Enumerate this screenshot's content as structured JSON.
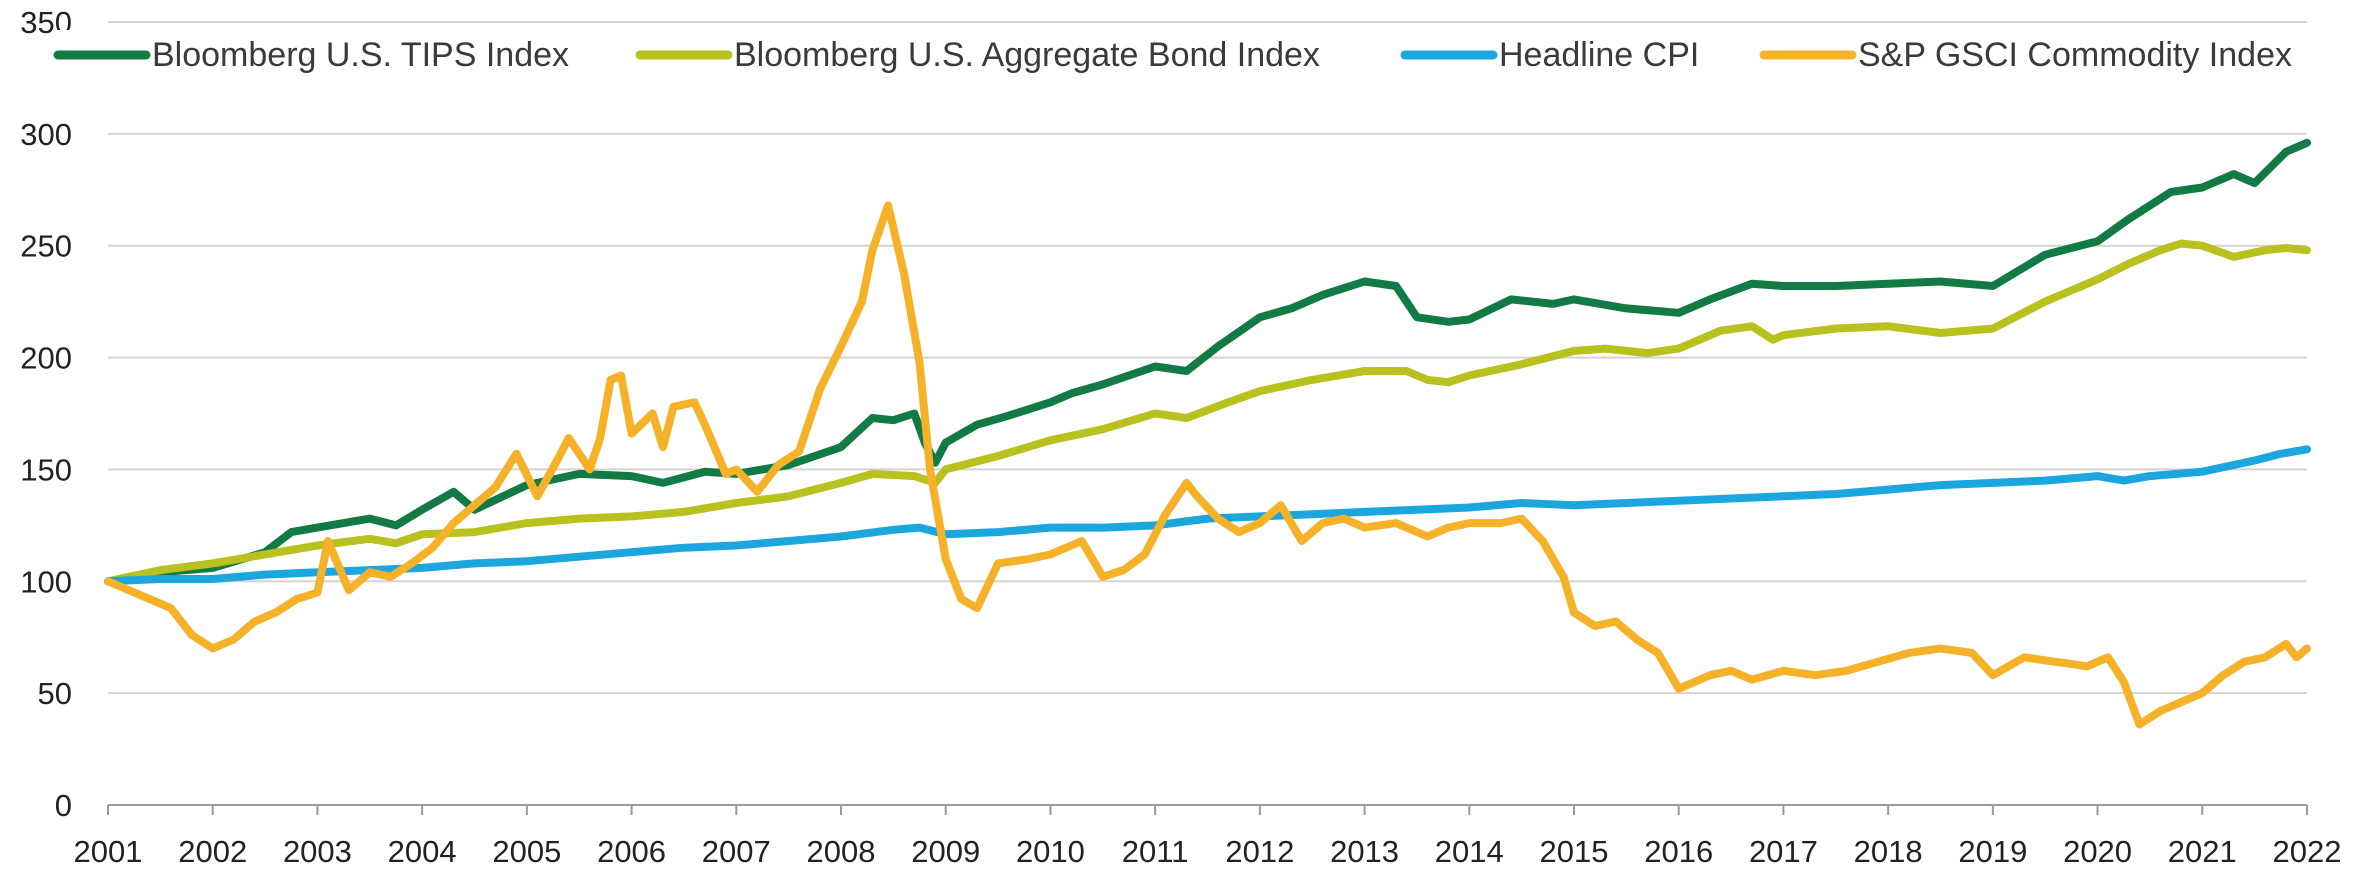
{
  "chart_data": {
    "type": "line",
    "title": "",
    "xlabel": "",
    "ylabel": "",
    "x_ticks": [
      "2001",
      "2002",
      "2003",
      "2004",
      "2005",
      "2006",
      "2007",
      "2008",
      "2009",
      "2010",
      "2011",
      "2012",
      "2013",
      "2014",
      "2015",
      "2016",
      "2017",
      "2018",
      "2019",
      "2020",
      "2021",
      "2022"
    ],
    "y_ticks": [
      "0",
      "50",
      "100",
      "150",
      "200",
      "250",
      "300",
      "350"
    ],
    "xlim": [
      2001,
      2022
    ],
    "ylim": [
      0,
      350
    ],
    "grid": "horizontal",
    "legend": "top",
    "series": [
      {
        "name": "Bloomberg U.S. TIPS Index",
        "color": "#127a45",
        "points": [
          [
            2001.0,
            100
          ],
          [
            2001.5,
            104
          ],
          [
            2002.0,
            106
          ],
          [
            2002.5,
            113
          ],
          [
            2002.75,
            122
          ],
          [
            2003.0,
            124
          ],
          [
            2003.5,
            128
          ],
          [
            2003.75,
            125
          ],
          [
            2004.0,
            132
          ],
          [
            2004.3,
            140
          ],
          [
            2004.5,
            132
          ],
          [
            2005.0,
            143
          ],
          [
            2005.5,
            148
          ],
          [
            2006.0,
            147
          ],
          [
            2006.3,
            144
          ],
          [
            2006.7,
            149
          ],
          [
            2007.0,
            148
          ],
          [
            2007.5,
            152
          ],
          [
            2008.0,
            160
          ],
          [
            2008.3,
            173
          ],
          [
            2008.5,
            172
          ],
          [
            2008.7,
            175
          ],
          [
            2008.8,
            162
          ],
          [
            2008.9,
            153
          ],
          [
            2009.0,
            162
          ],
          [
            2009.3,
            170
          ],
          [
            2009.6,
            174
          ],
          [
            2010.0,
            180
          ],
          [
            2010.2,
            184
          ],
          [
            2010.5,
            188
          ],
          [
            2011.0,
            196
          ],
          [
            2011.3,
            194
          ],
          [
            2011.6,
            205
          ],
          [
            2012.0,
            218
          ],
          [
            2012.3,
            222
          ],
          [
            2012.6,
            228
          ],
          [
            2013.0,
            234
          ],
          [
            2013.3,
            232
          ],
          [
            2013.5,
            218
          ],
          [
            2013.8,
            216
          ],
          [
            2014.0,
            217
          ],
          [
            2014.4,
            226
          ],
          [
            2014.8,
            224
          ],
          [
            2015.0,
            226
          ],
          [
            2015.5,
            222
          ],
          [
            2016.0,
            220
          ],
          [
            2016.3,
            226
          ],
          [
            2016.7,
            233
          ],
          [
            2017.0,
            232
          ],
          [
            2017.5,
            232
          ],
          [
            2018.0,
            233
          ],
          [
            2018.5,
            234
          ],
          [
            2019.0,
            232
          ],
          [
            2019.5,
            246
          ],
          [
            2020.0,
            252
          ],
          [
            2020.3,
            262
          ],
          [
            2020.7,
            274
          ],
          [
            2021.0,
            276
          ],
          [
            2021.3,
            282
          ],
          [
            2021.5,
            278
          ],
          [
            2021.8,
            292
          ],
          [
            2022.0,
            296
          ]
        ]
      },
      {
        "name": "Bloomberg U.S. Aggregate Bond Index",
        "color": "#b8c11e",
        "points": [
          [
            2001.0,
            100
          ],
          [
            2001.5,
            105
          ],
          [
            2002.0,
            108
          ],
          [
            2002.5,
            112
          ],
          [
            2003.0,
            116
          ],
          [
            2003.5,
            119
          ],
          [
            2003.75,
            117
          ],
          [
            2004.0,
            121
          ],
          [
            2004.5,
            122
          ],
          [
            2005.0,
            126
          ],
          [
            2005.5,
            128
          ],
          [
            2006.0,
            129
          ],
          [
            2006.5,
            131
          ],
          [
            2007.0,
            135
          ],
          [
            2007.5,
            138
          ],
          [
            2008.0,
            144
          ],
          [
            2008.3,
            148
          ],
          [
            2008.7,
            147
          ],
          [
            2008.9,
            144
          ],
          [
            2009.0,
            150
          ],
          [
            2009.5,
            156
          ],
          [
            2010.0,
            163
          ],
          [
            2010.5,
            168
          ],
          [
            2011.0,
            175
          ],
          [
            2011.3,
            173
          ],
          [
            2011.7,
            180
          ],
          [
            2012.0,
            185
          ],
          [
            2012.5,
            190
          ],
          [
            2013.0,
            194
          ],
          [
            2013.4,
            194
          ],
          [
            2013.6,
            190
          ],
          [
            2013.8,
            189
          ],
          [
            2014.0,
            192
          ],
          [
            2014.5,
            197
          ],
          [
            2015.0,
            203
          ],
          [
            2015.3,
            204
          ],
          [
            2015.7,
            202
          ],
          [
            2016.0,
            204
          ],
          [
            2016.4,
            212
          ],
          [
            2016.7,
            214
          ],
          [
            2016.9,
            208
          ],
          [
            2017.0,
            210
          ],
          [
            2017.5,
            213
          ],
          [
            2018.0,
            214
          ],
          [
            2018.5,
            211
          ],
          [
            2019.0,
            213
          ],
          [
            2019.5,
            225
          ],
          [
            2020.0,
            235
          ],
          [
            2020.3,
            242
          ],
          [
            2020.6,
            248
          ],
          [
            2020.8,
            251
          ],
          [
            2021.0,
            250
          ],
          [
            2021.3,
            245
          ],
          [
            2021.6,
            248
          ],
          [
            2021.8,
            249
          ],
          [
            2022.0,
            248
          ]
        ]
      },
      {
        "name": "Headline CPI",
        "color": "#1ba7dd",
        "points": [
          [
            2001.0,
            100
          ],
          [
            2001.5,
            101
          ],
          [
            2002.0,
            101
          ],
          [
            2002.5,
            103
          ],
          [
            2003.0,
            104
          ],
          [
            2003.5,
            105
          ],
          [
            2004.0,
            106
          ],
          [
            2004.5,
            108
          ],
          [
            2005.0,
            109
          ],
          [
            2005.5,
            111
          ],
          [
            2006.0,
            113
          ],
          [
            2006.5,
            115
          ],
          [
            2007.0,
            116
          ],
          [
            2007.5,
            118
          ],
          [
            2008.0,
            120
          ],
          [
            2008.5,
            123
          ],
          [
            2008.75,
            124
          ],
          [
            2009.0,
            121
          ],
          [
            2009.5,
            122
          ],
          [
            2010.0,
            124
          ],
          [
            2010.5,
            124
          ],
          [
            2011.0,
            125
          ],
          [
            2011.5,
            128
          ],
          [
            2012.0,
            129
          ],
          [
            2012.5,
            130
          ],
          [
            2013.0,
            131
          ],
          [
            2013.5,
            132
          ],
          [
            2014.0,
            133
          ],
          [
            2014.5,
            135
          ],
          [
            2015.0,
            134
          ],
          [
            2015.5,
            135
          ],
          [
            2016.0,
            136
          ],
          [
            2016.5,
            137
          ],
          [
            2017.0,
            138
          ],
          [
            2017.5,
            139
          ],
          [
            2018.0,
            141
          ],
          [
            2018.5,
            143
          ],
          [
            2019.0,
            144
          ],
          [
            2019.5,
            145
          ],
          [
            2020.0,
            147
          ],
          [
            2020.25,
            145
          ],
          [
            2020.5,
            147
          ],
          [
            2021.0,
            149
          ],
          [
            2021.5,
            154
          ],
          [
            2021.75,
            157
          ],
          [
            2022.0,
            159
          ]
        ]
      },
      {
        "name": "S&P GSCI Commodity Index",
        "color": "#f5b128",
        "points": [
          [
            2001.0,
            100
          ],
          [
            2001.2,
            96
          ],
          [
            2001.4,
            92
          ],
          [
            2001.6,
            88
          ],
          [
            2001.8,
            76
          ],
          [
            2002.0,
            70
          ],
          [
            2002.2,
            74
          ],
          [
            2002.4,
            82
          ],
          [
            2002.6,
            86
          ],
          [
            2002.8,
            92
          ],
          [
            2003.0,
            95
          ],
          [
            2003.1,
            118
          ],
          [
            2003.3,
            96
          ],
          [
            2003.5,
            104
          ],
          [
            2003.7,
            102
          ],
          [
            2003.9,
            108
          ],
          [
            2004.1,
            115
          ],
          [
            2004.3,
            126
          ],
          [
            2004.5,
            134
          ],
          [
            2004.7,
            142
          ],
          [
            2004.9,
            157
          ],
          [
            2005.1,
            138
          ],
          [
            2005.3,
            155
          ],
          [
            2005.4,
            164
          ],
          [
            2005.6,
            150
          ],
          [
            2005.7,
            164
          ],
          [
            2005.8,
            190
          ],
          [
            2005.9,
            192
          ],
          [
            2006.0,
            166
          ],
          [
            2006.2,
            175
          ],
          [
            2006.3,
            160
          ],
          [
            2006.4,
            178
          ],
          [
            2006.6,
            180
          ],
          [
            2006.7,
            170
          ],
          [
            2006.9,
            148
          ],
          [
            2007.0,
            150
          ],
          [
            2007.2,
            140
          ],
          [
            2007.4,
            152
          ],
          [
            2007.6,
            158
          ],
          [
            2007.8,
            186
          ],
          [
            2008.0,
            205
          ],
          [
            2008.2,
            225
          ],
          [
            2008.3,
            248
          ],
          [
            2008.45,
            268
          ],
          [
            2008.6,
            238
          ],
          [
            2008.75,
            198
          ],
          [
            2008.85,
            150
          ],
          [
            2009.0,
            110
          ],
          [
            2009.15,
            92
          ],
          [
            2009.3,
            88
          ],
          [
            2009.5,
            108
          ],
          [
            2009.8,
            110
          ],
          [
            2010.0,
            112
          ],
          [
            2010.3,
            118
          ],
          [
            2010.5,
            102
          ],
          [
            2010.7,
            105
          ],
          [
            2010.9,
            112
          ],
          [
            2011.1,
            130
          ],
          [
            2011.3,
            144
          ],
          [
            2011.4,
            138
          ],
          [
            2011.6,
            128
          ],
          [
            2011.8,
            122
          ],
          [
            2012.0,
            126
          ],
          [
            2012.2,
            134
          ],
          [
            2012.4,
            118
          ],
          [
            2012.6,
            126
          ],
          [
            2012.8,
            128
          ],
          [
            2013.0,
            124
          ],
          [
            2013.3,
            126
          ],
          [
            2013.6,
            120
          ],
          [
            2013.8,
            124
          ],
          [
            2014.0,
            126
          ],
          [
            2014.3,
            126
          ],
          [
            2014.5,
            128
          ],
          [
            2014.7,
            118
          ],
          [
            2014.9,
            102
          ],
          [
            2015.0,
            86
          ],
          [
            2015.2,
            80
          ],
          [
            2015.4,
            82
          ],
          [
            2015.6,
            74
          ],
          [
            2015.8,
            68
          ],
          [
            2016.0,
            52
          ],
          [
            2016.3,
            58
          ],
          [
            2016.5,
            60
          ],
          [
            2016.7,
            56
          ],
          [
            2017.0,
            60
          ],
          [
            2017.3,
            58
          ],
          [
            2017.6,
            60
          ],
          [
            2017.9,
            64
          ],
          [
            2018.2,
            68
          ],
          [
            2018.5,
            70
          ],
          [
            2018.8,
            68
          ],
          [
            2019.0,
            58
          ],
          [
            2019.3,
            66
          ],
          [
            2019.6,
            64
          ],
          [
            2019.9,
            62
          ],
          [
            2020.1,
            66
          ],
          [
            2020.25,
            55
          ],
          [
            2020.4,
            36
          ],
          [
            2020.6,
            42
          ],
          [
            2020.8,
            46
          ],
          [
            2021.0,
            50
          ],
          [
            2021.2,
            58
          ],
          [
            2021.4,
            64
          ],
          [
            2021.6,
            66
          ],
          [
            2021.8,
            72
          ],
          [
            2021.9,
            66
          ],
          [
            2022.0,
            70
          ]
        ]
      }
    ]
  }
}
